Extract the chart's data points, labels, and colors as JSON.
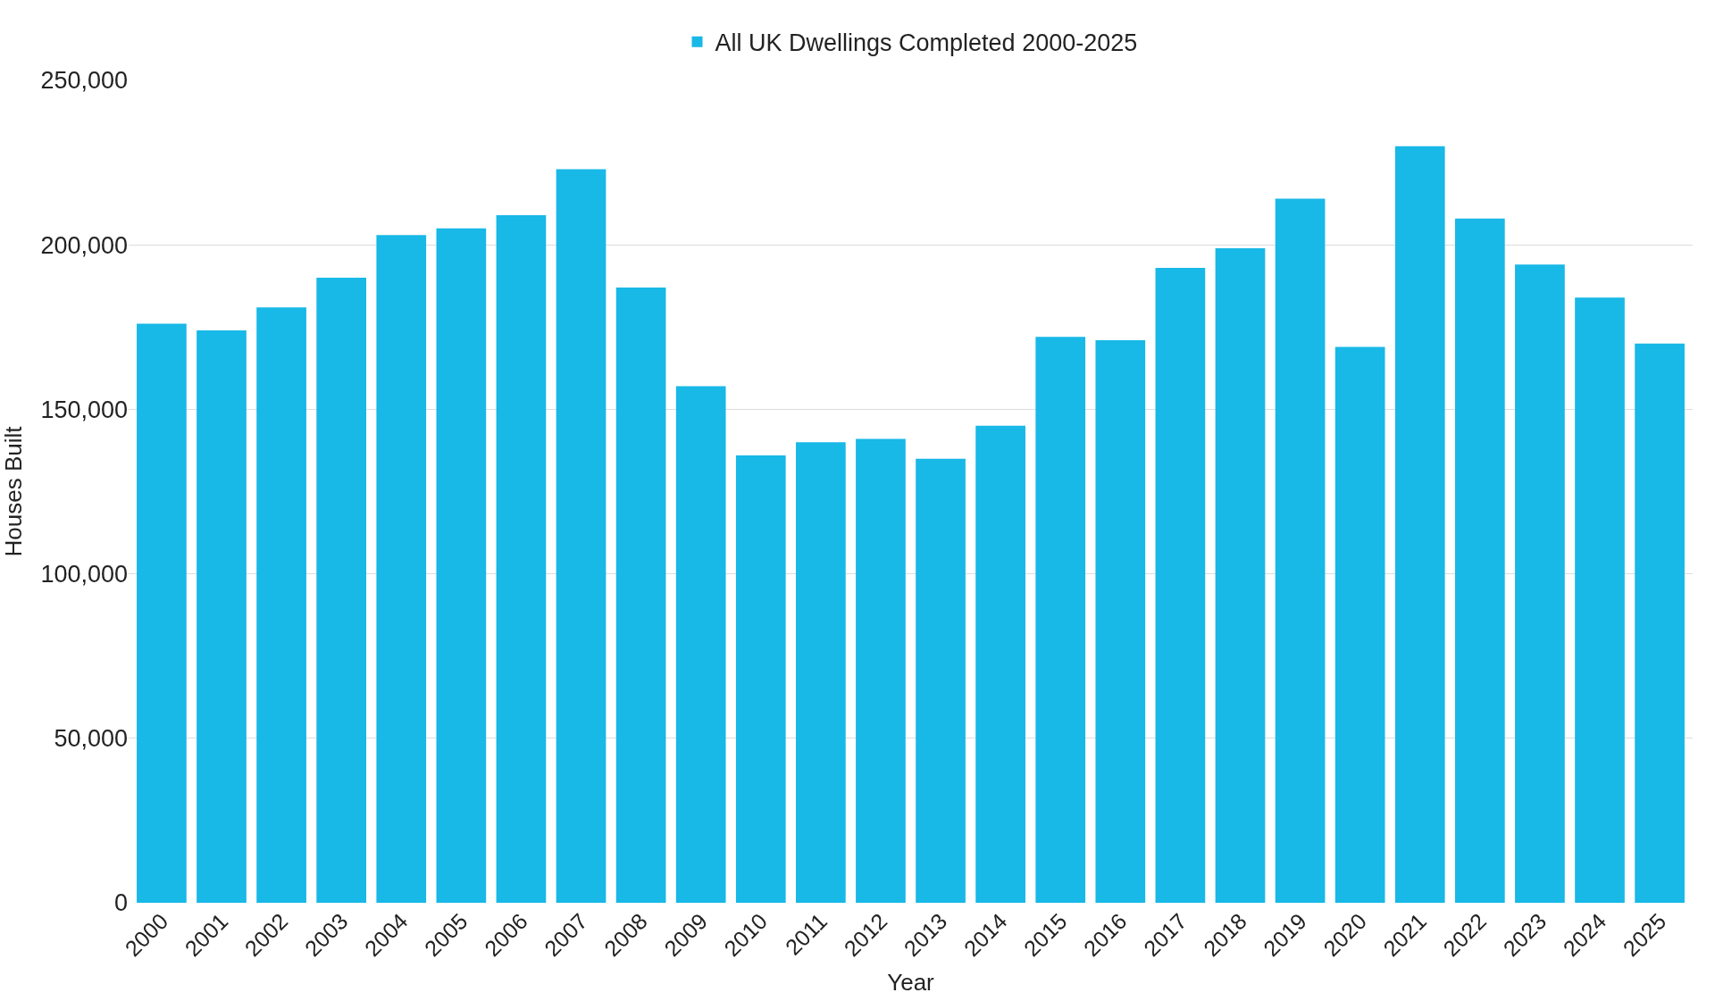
{
  "chart_data": {
    "type": "bar",
    "xlabel": "Year",
    "ylabel": "Houses Built",
    "categories": [
      "2000",
      "2001",
      "2002",
      "2003",
      "2004",
      "2005",
      "2006",
      "2007",
      "2008",
      "2009",
      "2010",
      "2011",
      "2012",
      "2013",
      "2014",
      "2015",
      "2016",
      "2017",
      "2018",
      "2019",
      "2020",
      "2021",
      "2022",
      "2023",
      "2024",
      "2025"
    ],
    "series": [
      {
        "name": "All UK Dwellings Completed 2000-2025",
        "color": "#18b8e7",
        "values": [
          176000,
          174000,
          181000,
          190000,
          203000,
          205000,
          209000,
          223000,
          187000,
          157000,
          136000,
          140000,
          141000,
          135000,
          145000,
          172000,
          171000,
          193000,
          199000,
          214000,
          169000,
          230000,
          208000,
          194000,
          184000,
          170000
        ]
      }
    ],
    "ylim": [
      0,
      250000
    ],
    "yticks": [
      {
        "value": 0,
        "label": "0"
      },
      {
        "value": 50000,
        "label": "50,000"
      },
      {
        "value": 100000,
        "label": "100,000"
      },
      {
        "value": 150000,
        "label": "150,000"
      },
      {
        "value": 200000,
        "label": "200,000"
      },
      {
        "value": 250000,
        "label": "250,000"
      }
    ],
    "grid": "y",
    "legend": "top"
  }
}
